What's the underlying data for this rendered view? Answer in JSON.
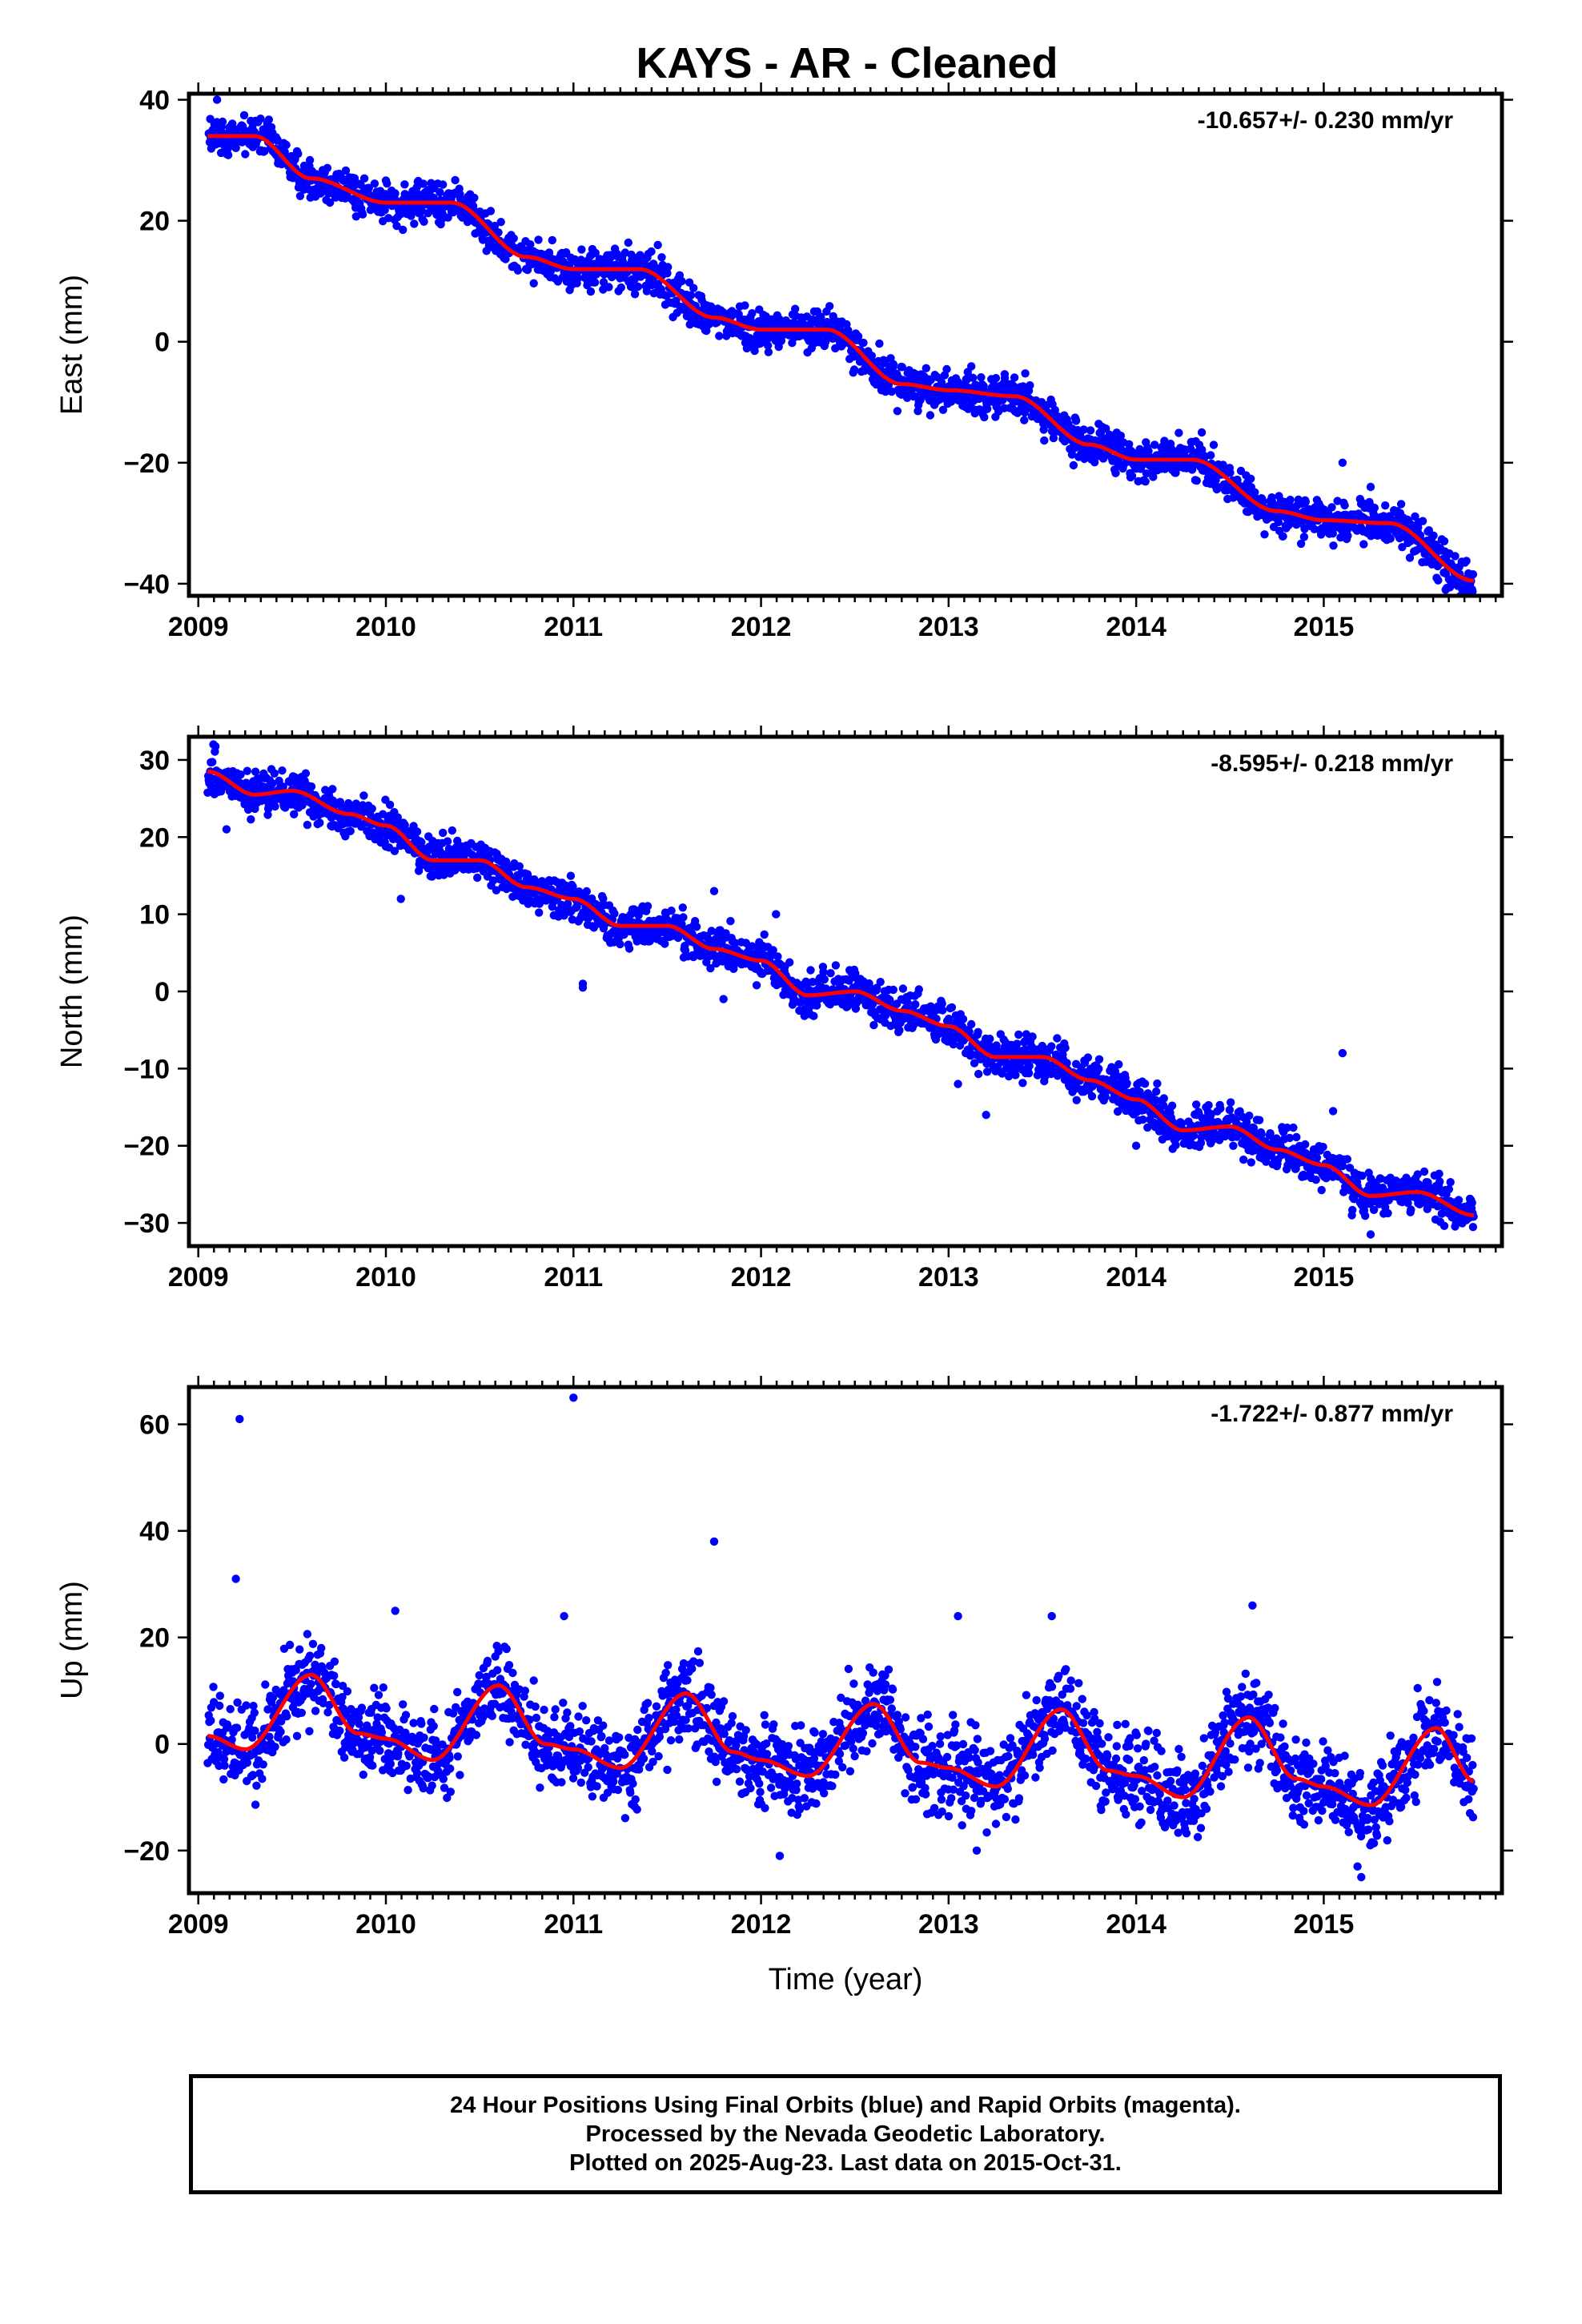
{
  "title": "KAYS  - AR - Cleaned",
  "colors": {
    "points": "#0000ff",
    "fit": "#ff0000",
    "frame": "#000000"
  },
  "footer": {
    "line1": "24 Hour Positions Using Final Orbits (blue) and Rapid Orbits (magenta).",
    "line2": "Processed by the Nevada Geodetic Laboratory.",
    "line3": "Plotted on 2025-Aug-23. Last data on 2015-Oct-31."
  },
  "chart_data": [
    {
      "type": "scatter",
      "ylabel": "East (mm)",
      "xlabel": "",
      "rate": "-10.657+/- 0.230 mm/yr",
      "xlim": [
        2008.95,
        2015.95
      ],
      "ylim": [
        -42,
        41
      ],
      "xticks": [
        2009,
        2010,
        2011,
        2012,
        2013,
        2014,
        2015
      ],
      "yticks": [
        -40,
        -20,
        0,
        20,
        40
      ],
      "fit_x": [
        2009.05,
        2009.3,
        2009.6,
        2010.0,
        2010.35,
        2010.75,
        2011.0,
        2011.35,
        2011.75,
        2012.0,
        2012.35,
        2012.75,
        2013.0,
        2013.35,
        2013.75,
        2014.0,
        2014.3,
        2014.75,
        2015.0,
        2015.35,
        2015.8
      ],
      "fit_y": [
        34,
        34,
        27,
        23,
        23,
        14,
        12,
        12,
        4,
        2,
        2,
        -7,
        -8,
        -9,
        -17,
        -19.5,
        -19.5,
        -28,
        -29.5,
        -30,
        -39.5
      ],
      "scatter": 1.6,
      "outliers": [
        [
          2009.1,
          40
        ],
        [
          2009.25,
          31
        ],
        [
          2010.1,
          26
        ],
        [
          2011.45,
          16
        ],
        [
          2012.3,
          5
        ],
        [
          2013.3,
          -6
        ],
        [
          2014.35,
          -15
        ],
        [
          2015.1,
          -20
        ],
        [
          2015.25,
          -24
        ],
        [
          2015.65,
          -41
        ]
      ]
    },
    {
      "type": "scatter",
      "ylabel": "North (mm)",
      "xlabel": "",
      "rate": "-8.595+/- 0.218 mm/yr",
      "xlim": [
        2008.95,
        2015.95
      ],
      "ylim": [
        -33,
        33
      ],
      "xticks": [
        2009,
        2010,
        2011,
        2012,
        2013,
        2014,
        2015
      ],
      "yticks": [
        -30,
        -20,
        -10,
        0,
        10,
        20,
        30
      ],
      "fit_x": [
        2009.05,
        2009.3,
        2009.5,
        2009.8,
        2010.0,
        2010.25,
        2010.5,
        2010.75,
        2011.0,
        2011.25,
        2011.5,
        2011.75,
        2012.0,
        2012.25,
        2012.5,
        2012.75,
        2013.0,
        2013.25,
        2013.5,
        2013.75,
        2014.0,
        2014.25,
        2014.5,
        2014.75,
        2015.0,
        2015.25,
        2015.5,
        2015.8
      ],
      "fit_y": [
        28.5,
        25.5,
        26,
        23,
        21.5,
        17,
        17,
        13.5,
        12,
        8.5,
        8.5,
        5.5,
        4,
        -0.5,
        0,
        -2.5,
        -4.5,
        -8.5,
        -8.5,
        -11.5,
        -14,
        -18,
        -17.5,
        -20.5,
        -22.5,
        -26.5,
        -26,
        -29
      ],
      "scatter": 1.3,
      "outliers": [
        [
          2009.08,
          32
        ],
        [
          2009.15,
          21
        ],
        [
          2010.08,
          12
        ],
        [
          2011.05,
          1
        ],
        [
          2011.05,
          0.5
        ],
        [
          2011.75,
          13
        ],
        [
          2012.08,
          10
        ],
        [
          2011.8,
          -1
        ],
        [
          2013.2,
          -16
        ],
        [
          2013.05,
          -12
        ],
        [
          2015.1,
          -8
        ],
        [
          2015.05,
          -15.5
        ],
        [
          2015.25,
          -31.5
        ],
        [
          2015.15,
          -29
        ],
        [
          2014.0,
          -20
        ]
      ]
    },
    {
      "type": "scatter",
      "ylabel": "Up (mm)",
      "xlabel": "Time (year)",
      "rate": "-1.722+/- 0.877 mm/yr",
      "xlim": [
        2008.95,
        2015.95
      ],
      "ylim": [
        -28,
        67
      ],
      "xticks": [
        2009,
        2010,
        2011,
        2012,
        2013,
        2014,
        2015
      ],
      "yticks": [
        -20,
        0,
        20,
        40,
        60
      ],
      "fit_x": [
        2009.05,
        2009.25,
        2009.6,
        2009.85,
        2010.0,
        2010.25,
        2010.6,
        2010.85,
        2011.0,
        2011.25,
        2011.6,
        2011.85,
        2012.0,
        2012.25,
        2012.6,
        2012.85,
        2013.0,
        2013.25,
        2013.6,
        2013.85,
        2014.0,
        2014.25,
        2014.6,
        2014.85,
        2015.0,
        2015.25,
        2015.6,
        2015.8
      ],
      "fit_y": [
        1.5,
        -1,
        13,
        2,
        1,
        -3,
        11,
        0,
        -1,
        -4.5,
        9.5,
        -1.5,
        -3,
        -6,
        7.5,
        -3.5,
        -4.5,
        -8,
        6.5,
        -5,
        -6,
        -10,
        5,
        -6.5,
        -8,
        -11.5,
        3,
        -7
      ],
      "scatter": 4,
      "outliers": [
        [
          2009.22,
          61
        ],
        [
          2009.2,
          31
        ],
        [
          2011.0,
          65
        ],
        [
          2011.75,
          38
        ],
        [
          2010.05,
          25
        ],
        [
          2010.95,
          24
        ],
        [
          2013.05,
          24
        ],
        [
          2013.55,
          24
        ],
        [
          2014.62,
          26
        ],
        [
          2012.1,
          -21
        ],
        [
          2013.15,
          -20
        ],
        [
          2015.2,
          -25
        ],
        [
          2015.18,
          -23
        ]
      ]
    }
  ]
}
